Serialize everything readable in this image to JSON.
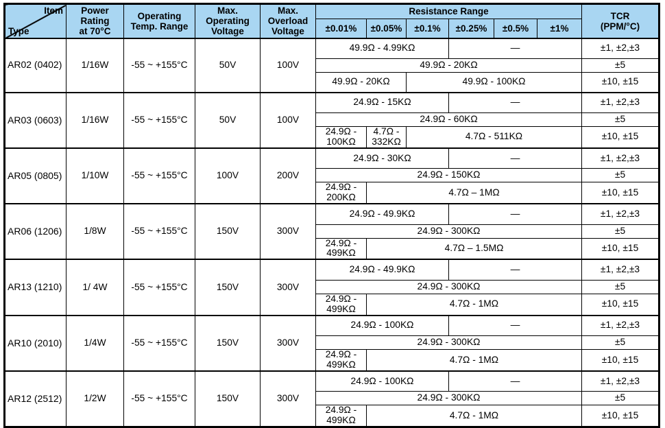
{
  "colors": {
    "header_bg": "#a9d6f2",
    "border": "#000000",
    "text": "#000000",
    "page_bg": "#ffffff"
  },
  "table": {
    "header": {
      "item": "Item",
      "type": "Type",
      "power": "Power\nRating\nat 70°C",
      "operating_temp": "Operating\nTemp. Range",
      "max_operating": "Max.\nOperating\nVoltage",
      "max_overload": "Max.\nOverload\nVoltage",
      "resistance_range": "Resistance Range",
      "tolerances": [
        "±0.01%",
        "±0.05%",
        "±0.1%",
        "±0.25%",
        "±0.5%",
        "±1%"
      ],
      "tcr": "TCR\n(PPM/°C)"
    },
    "rows": [
      {
        "type": "AR02 (0402)",
        "power": "1/16W",
        "temp_range": "-55 ~ +155°C",
        "max_operating_voltage": "50V",
        "max_overload_voltage": "100V",
        "resistance_rows": [
          {
            "cells": [
              {
                "text": "49.9Ω - 4.99KΩ",
                "span": 3
              },
              {
                "text": "—",
                "span": 3
              }
            ],
            "tcr": "±1, ±2,±3"
          },
          {
            "cells": [
              {
                "text": "49.9Ω - 20KΩ",
                "span": 6
              }
            ],
            "tcr": "±5"
          },
          {
            "cells": [
              {
                "text": "49.9Ω - 20KΩ",
                "span": 2
              },
              {
                "text": "49.9Ω - 100KΩ",
                "span": 4
              }
            ],
            "tcr": "±10, ±15"
          }
        ]
      },
      {
        "type": "AR03 (0603)",
        "power": "1/16W",
        "temp_range": "-55 ~ +155°C",
        "max_operating_voltage": "50V",
        "max_overload_voltage": "100V",
        "resistance_rows": [
          {
            "cells": [
              {
                "text": "24.9Ω - 15KΩ",
                "span": 3
              },
              {
                "text": "—",
                "span": 3
              }
            ],
            "tcr": "±1, ±2,±3"
          },
          {
            "cells": [
              {
                "text": "24.9Ω - 60KΩ",
                "span": 6
              }
            ],
            "tcr": "±5"
          },
          {
            "cells": [
              {
                "text": "24.9Ω - 100KΩ",
                "span": 1
              },
              {
                "text": "4.7Ω - 332KΩ",
                "span": 1
              },
              {
                "text": "4.7Ω - 511KΩ",
                "span": 4
              }
            ],
            "tcr": "±10, ±15"
          }
        ]
      },
      {
        "type": "AR05 (0805)",
        "power": "1/10W",
        "temp_range": "-55 ~ +155°C",
        "max_operating_voltage": "100V",
        "max_overload_voltage": "200V",
        "resistance_rows": [
          {
            "cells": [
              {
                "text": "24.9Ω - 30KΩ",
                "span": 3
              },
              {
                "text": "—",
                "span": 3
              }
            ],
            "tcr": "±1, ±2,±3"
          },
          {
            "cells": [
              {
                "text": "24.9Ω - 150KΩ",
                "span": 6
              }
            ],
            "tcr": "±5"
          },
          {
            "cells": [
              {
                "text": "24.9Ω - 200KΩ",
                "span": 1
              },
              {
                "text": "4.7Ω – 1MΩ",
                "span": 5
              }
            ],
            "tcr": "±10, ±15"
          }
        ]
      },
      {
        "type": "AR06 (1206)",
        "power": "1/8W",
        "temp_range": "-55 ~ +155°C",
        "max_operating_voltage": "150V",
        "max_overload_voltage": "300V",
        "resistance_rows": [
          {
            "cells": [
              {
                "text": "24.9Ω - 49.9KΩ",
                "span": 3
              },
              {
                "text": "—",
                "span": 3
              }
            ],
            "tcr": "±1, ±2,±3"
          },
          {
            "cells": [
              {
                "text": "24.9Ω - 300KΩ",
                "span": 6
              }
            ],
            "tcr": "±5"
          },
          {
            "cells": [
              {
                "text": "24.9Ω - 499KΩ",
                "span": 1
              },
              {
                "text": "4.7Ω – 1.5MΩ",
                "span": 5
              }
            ],
            "tcr": "±10, ±15"
          }
        ]
      },
      {
        "type": "AR13 (1210)",
        "power": "1/ 4W",
        "temp_range": "-55 ~ +155°C",
        "max_operating_voltage": "150V",
        "max_overload_voltage": "300V",
        "resistance_rows": [
          {
            "cells": [
              {
                "text": "24.9Ω - 49.9KΩ",
                "span": 3
              },
              {
                "text": "—",
                "span": 3
              }
            ],
            "tcr": "±1, ±2,±3"
          },
          {
            "cells": [
              {
                "text": "24.9Ω - 300KΩ",
                "span": 6
              }
            ],
            "tcr": "±5"
          },
          {
            "cells": [
              {
                "text": "24.9Ω - 499KΩ",
                "span": 1
              },
              {
                "text": "4.7Ω - 1MΩ",
                "span": 5
              }
            ],
            "tcr": "±10, ±15"
          }
        ]
      },
      {
        "type": "AR10 (2010)",
        "power": "1/4W",
        "temp_range": "-55 ~ +155°C",
        "max_operating_voltage": "150V",
        "max_overload_voltage": "300V",
        "resistance_rows": [
          {
            "cells": [
              {
                "text": "24.9Ω - 100KΩ",
                "span": 3
              },
              {
                "text": "—",
                "span": 3
              }
            ],
            "tcr": "±1, ±2,±3"
          },
          {
            "cells": [
              {
                "text": "24.9Ω - 300KΩ",
                "span": 6
              }
            ],
            "tcr": "±5"
          },
          {
            "cells": [
              {
                "text": "24.9Ω - 499KΩ",
                "span": 1
              },
              {
                "text": "4.7Ω - 1MΩ",
                "span": 5
              }
            ],
            "tcr": "±10, ±15"
          }
        ]
      },
      {
        "type": "AR12 (2512)",
        "power": "1/2W",
        "temp_range": "-55 ~ +155°C",
        "max_operating_voltage": "150V",
        "max_overload_voltage": "300V",
        "resistance_rows": [
          {
            "cells": [
              {
                "text": "24.9Ω - 100KΩ",
                "span": 3
              },
              {
                "text": "—",
                "span": 3
              }
            ],
            "tcr": "±1, ±2,±3"
          },
          {
            "cells": [
              {
                "text": "24.9Ω - 300KΩ",
                "span": 6
              }
            ],
            "tcr": "±5"
          },
          {
            "cells": [
              {
                "text": "24.9Ω - 499KΩ",
                "span": 1
              },
              {
                "text": "4.7Ω - 1MΩ",
                "span": 5
              }
            ],
            "tcr": "±10, ±15"
          }
        ]
      }
    ]
  }
}
